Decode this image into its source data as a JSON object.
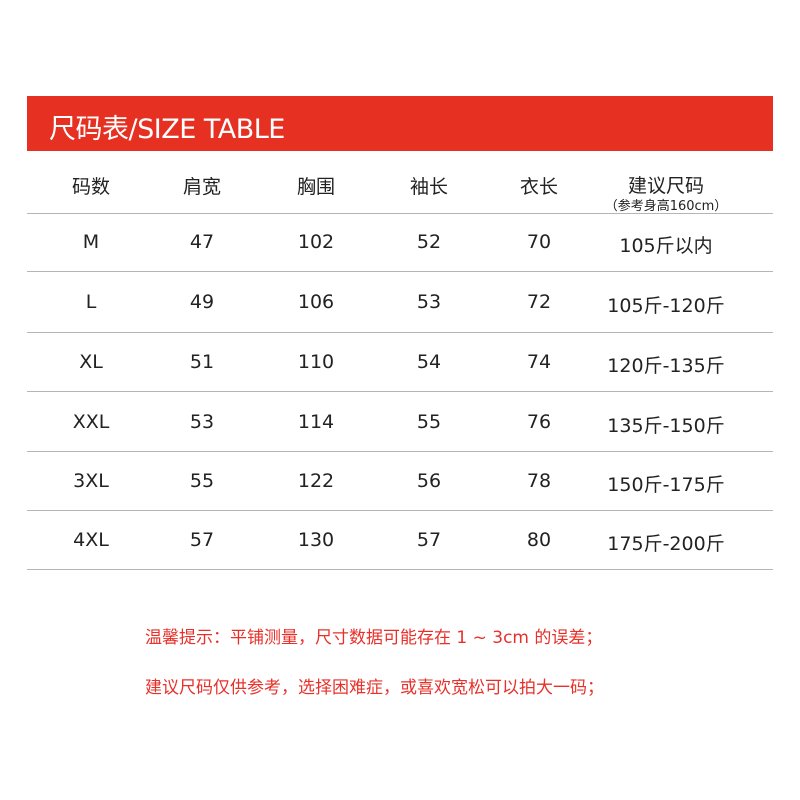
{
  "title": "尺码表/SIZE TABLE",
  "accent_color": "#e63022",
  "table": {
    "headers": [
      "码数",
      "肩宽",
      "胸围",
      "袖长",
      "衣长",
      "建议尺码"
    ],
    "header_note": "（参考身高160cm）",
    "rows": [
      [
        "M",
        "47",
        "102",
        "52",
        "70",
        "105斤以内"
      ],
      [
        "L",
        "49",
        "106",
        "53",
        "72",
        "105斤-120斤"
      ],
      [
        "XL",
        "51",
        "110",
        "54",
        "74",
        "120斤-135斤"
      ],
      [
        "XXL",
        "53",
        "114",
        "55",
        "76",
        "135斤-150斤"
      ],
      [
        "3XL",
        "55",
        "122",
        "56",
        "78",
        "150斤-175斤"
      ],
      [
        "4XL",
        "57",
        "130",
        "57",
        "80",
        "175斤-200斤"
      ]
    ]
  },
  "notes": [
    "温馨提示：平铺测量，尺寸数据可能存在 1 ~ 3cm 的误差；",
    "建议尺码仅供参考，选择困难症，或喜欢宽松可以拍大一码；"
  ]
}
